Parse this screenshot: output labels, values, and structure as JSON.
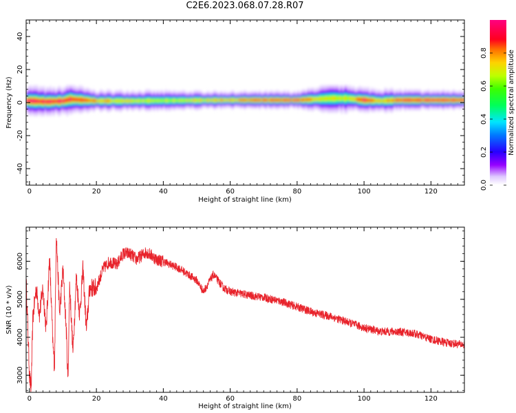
{
  "title": "C2E6.2023.068.07.28.R07",
  "colors": {
    "snr_line": "#e8232b",
    "axes": "#000000",
    "background": "#ffffff"
  },
  "chart_data": [
    {
      "type": "heatmap",
      "xlabel": "Height of straight line (km)",
      "ylabel": "Frequency (Hz)",
      "xlim": [
        -1,
        130
      ],
      "ylim": [
        -50,
        50
      ],
      "xticks": [
        0,
        20,
        40,
        60,
        80,
        100,
        120
      ],
      "yticks": [
        40,
        20,
        0,
        -20,
        -40
      ],
      "ytick_labels": [
        "40",
        "20",
        "0",
        "-20",
        "-40"
      ],
      "description_of_values": "Normalized amplitude concentrated in a narrow band near 0-2 Hz across full height range; band widest (about -4 to +5 Hz) near 0-12 km and 82-104 km",
      "band": {
        "x": [
          0,
          5,
          10,
          12,
          16,
          20,
          30,
          40,
          60,
          80,
          85,
          90,
          95,
          100,
          105,
          110,
          120,
          130
        ],
        "center": [
          1.0,
          0.5,
          1.0,
          2.0,
          1.5,
          1.0,
          1.0,
          1.2,
          1.5,
          1.5,
          2.0,
          2.5,
          2.5,
          1.5,
          1.0,
          1.5,
          1.5,
          1.5
        ],
        "halfwidth": [
          4.5,
          4.0,
          4.0,
          4.5,
          3.5,
          3.0,
          3.0,
          2.8,
          2.5,
          2.5,
          3.5,
          4.0,
          4.0,
          3.5,
          3.5,
          3.0,
          2.8,
          2.8
        ],
        "peak": [
          0.95,
          0.9,
          0.95,
          0.9,
          0.85,
          0.75,
          0.65,
          0.6,
          0.75,
          0.9,
          0.7,
          0.65,
          0.65,
          0.9,
          0.7,
          0.85,
          0.9,
          0.9
        ]
      }
    },
    {
      "type": "line",
      "xlabel": "Height of straight line (km)",
      "ylabel": "SNR (10 * v/v)",
      "xlim": [
        -1,
        130
      ],
      "ylim": [
        2550,
        6900
      ],
      "xticks": [
        0,
        20,
        40,
        60,
        80,
        100,
        120
      ],
      "yticks": [
        3000,
        4000,
        5000,
        6000
      ],
      "series": [
        {
          "x": [
            -1,
            0,
            0.5,
            1,
            2,
            3,
            4,
            5,
            6,
            7,
            7.5,
            8,
            9,
            10,
            11,
            11.5,
            12,
            13,
            14,
            15,
            16,
            17,
            18,
            20,
            22,
            24,
            26,
            28,
            30,
            32,
            35,
            38,
            40,
            45,
            50,
            52,
            55,
            58,
            60,
            63,
            66,
            70,
            75,
            80,
            85,
            90,
            95,
            100,
            105,
            110,
            115,
            120,
            125,
            130
          ],
          "y": [
            5500,
            3000,
            2600,
            4500,
            5300,
            4600,
            5300,
            4200,
            6100,
            3800,
            3200,
            6800,
            4600,
            5800,
            4200,
            2800,
            5400,
            3600,
            5600,
            4600,
            5800,
            4200,
            5300,
            5300,
            5800,
            6000,
            5900,
            6200,
            6200,
            6050,
            6250,
            6050,
            6000,
            5800,
            5500,
            5200,
            5650,
            5300,
            5200,
            5150,
            5100,
            5050,
            4950,
            4800,
            4650,
            4550,
            4400,
            4250,
            4150,
            4150,
            4100,
            3950,
            3850,
            3800
          ]
        }
      ]
    }
  ],
  "colorbar": {
    "label": "Normalized spectral amplitude",
    "range": [
      0,
      1
    ],
    "ticks": [
      0.0,
      0.2,
      0.4,
      0.6,
      0.8
    ],
    "tick_labels": [
      "0.0",
      "0.2",
      "0.4",
      "0.6",
      "0.8"
    ]
  }
}
